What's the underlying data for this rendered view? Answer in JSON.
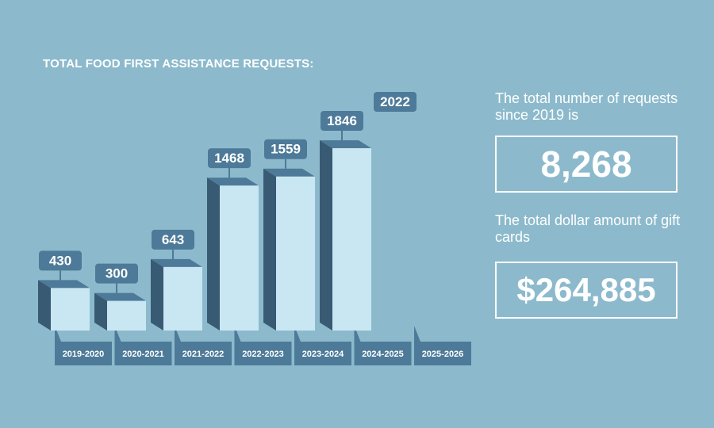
{
  "chart_title": "TOTAL FOOD FIRST ASSISTANCE REQUESTS:",
  "colors": {
    "background": "#8cbacc",
    "bar_front": "#c9e7f2",
    "bar_side": "#395a73",
    "bar_top": "#4d7a98",
    "label_box": "#4d7a98",
    "text": "#ffffff"
  },
  "chart_data": {
    "type": "bar",
    "title": "TOTAL FOOD FIRST ASSISTANCE REQUESTS:",
    "categories": [
      "2019-2020",
      "2020-2021",
      "2021-2022",
      "2022-2023",
      "2023-2024",
      "2024-2025",
      "2025-2026"
    ],
    "values": [
      430,
      300,
      643,
      1468,
      1559,
      1846,
      2022
    ],
    "data_labels": [
      "430",
      "300",
      "643",
      "1468",
      "1559",
      "1846",
      "2022"
    ],
    "style": "3d-columns"
  },
  "stats": {
    "requests_text": "The total number of requests since 2019 is",
    "requests_value": "8,268",
    "giftcards_text": "The total dollar amount of gift cards",
    "giftcards_value": "$264,885"
  }
}
